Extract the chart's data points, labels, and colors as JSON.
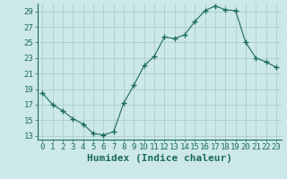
{
  "x": [
    0,
    1,
    2,
    3,
    4,
    5,
    6,
    7,
    8,
    9,
    10,
    11,
    12,
    13,
    14,
    15,
    16,
    17,
    18,
    19,
    20,
    21,
    22,
    23
  ],
  "y": [
    18.5,
    17.0,
    16.2,
    15.2,
    14.5,
    13.3,
    13.1,
    13.5,
    17.2,
    19.5,
    22.0,
    23.2,
    25.7,
    25.5,
    26.0,
    27.7,
    29.1,
    29.7,
    29.2,
    29.1,
    25.0,
    23.0,
    22.5,
    21.8
  ],
  "line_color": "#1a6b5a",
  "marker": "+",
  "marker_size": 4,
  "bg_color": "#cce8e8",
  "grid_color": "#a8c8c8",
  "xlabel": "Humidex (Indice chaleur)",
  "xlim": [
    -0.5,
    23.5
  ],
  "ylim": [
    12.5,
    30.0
  ],
  "yticks": [
    13,
    15,
    17,
    19,
    21,
    23,
    25,
    27,
    29
  ],
  "xticks": [
    0,
    1,
    2,
    3,
    4,
    5,
    6,
    7,
    8,
    9,
    10,
    11,
    12,
    13,
    14,
    15,
    16,
    17,
    18,
    19,
    20,
    21,
    22,
    23
  ],
  "tick_fontsize": 6.5,
  "xlabel_fontsize": 8,
  "tick_color": "#1a6b5a"
}
